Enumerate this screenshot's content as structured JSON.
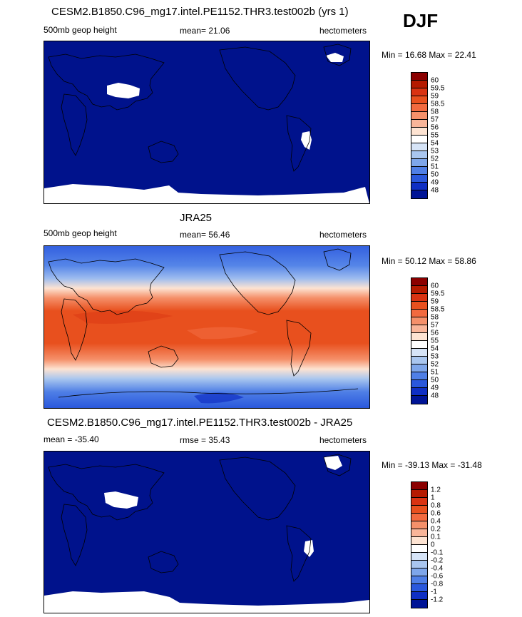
{
  "season": "DJF",
  "panels": [
    {
      "title": "CESM2.B1850.C96_mg17.intel.PE1152.THR3.test002b (yrs 1)",
      "left_label": "500mb geop height",
      "center_label": "mean=  21.06",
      "right_label": "hectometers",
      "minmax": "Min =  16.68 Max =  22.41",
      "levels": [
        "60",
        "59.5",
        "59",
        "58.5",
        "58",
        "57",
        "56",
        "55",
        "54",
        "53",
        "52",
        "51",
        "50",
        "49",
        "48"
      ]
    },
    {
      "title": "JRA25",
      "left_label": "500mb geop height",
      "center_label": "mean=  56.46",
      "right_label": "hectometers",
      "minmax": "Min =  50.12 Max =  58.86",
      "levels": [
        "60",
        "59.5",
        "59",
        "58.5",
        "58",
        "57",
        "56",
        "55",
        "54",
        "53",
        "52",
        "51",
        "50",
        "49",
        "48"
      ]
    },
    {
      "title": "CESM2.B1850.C96_mg17.intel.PE1152.THR3.test002b - JRA25",
      "left_label": "mean = -35.40",
      "center_label": "rmse =  35.43",
      "right_label": "hectometers",
      "minmax": "Min = -39.13 Max = -31.48",
      "levels": [
        "1.2",
        "1",
        "0.8",
        "0.6",
        "0.4",
        "0.2",
        "0.1",
        "0",
        "-0.1",
        "-0.2",
        "-0.4",
        "-0.6",
        "-0.8",
        "-1",
        "-1.2"
      ]
    }
  ],
  "colorbar_colors": [
    "#8b0000",
    "#b51a00",
    "#d93312",
    "#e8501e",
    "#f26a3f",
    "#f5906a",
    "#f9b599",
    "#fde3d2",
    "#ffffff",
    "#d6e4f7",
    "#a9c6ef",
    "#7ea6ea",
    "#4f7fe6",
    "#2a58dc",
    "#0f2fc4",
    "#001496"
  ],
  "map_colors": {
    "background": "#00128c",
    "missing": "#ffffff",
    "coast": "#000000"
  }
}
